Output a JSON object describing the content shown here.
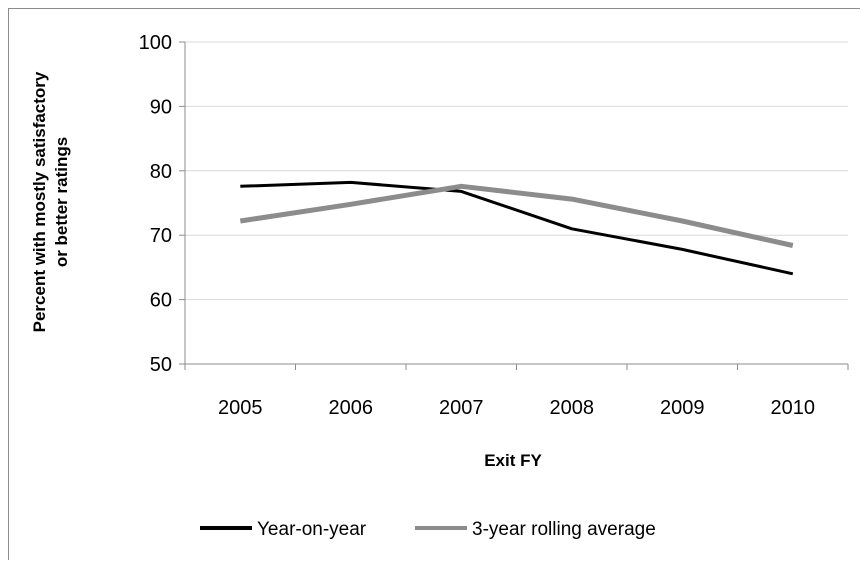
{
  "chart_data": {
    "type": "line",
    "title": "",
    "xlabel": "Exit FY",
    "ylabel_lines": [
      "Percent with mostly satisfactory",
      "or better ratings"
    ],
    "categories": [
      "2005",
      "2006",
      "2007",
      "2008",
      "2009",
      "2010"
    ],
    "ylim": [
      50,
      100
    ],
    "yticks": [
      50,
      60,
      70,
      80,
      90,
      100
    ],
    "grid": true,
    "legend_position": "bottom",
    "series": [
      {
        "name": "Year-on-year",
        "color": "#000000",
        "values": [
          77.6,
          78.2,
          76.8,
          71.0,
          67.8,
          64.0
        ]
      },
      {
        "name": "3-year rolling average",
        "color": "#8c8c8c",
        "values": [
          72.2,
          74.8,
          77.6,
          75.6,
          72.2,
          68.4
        ]
      }
    ]
  }
}
